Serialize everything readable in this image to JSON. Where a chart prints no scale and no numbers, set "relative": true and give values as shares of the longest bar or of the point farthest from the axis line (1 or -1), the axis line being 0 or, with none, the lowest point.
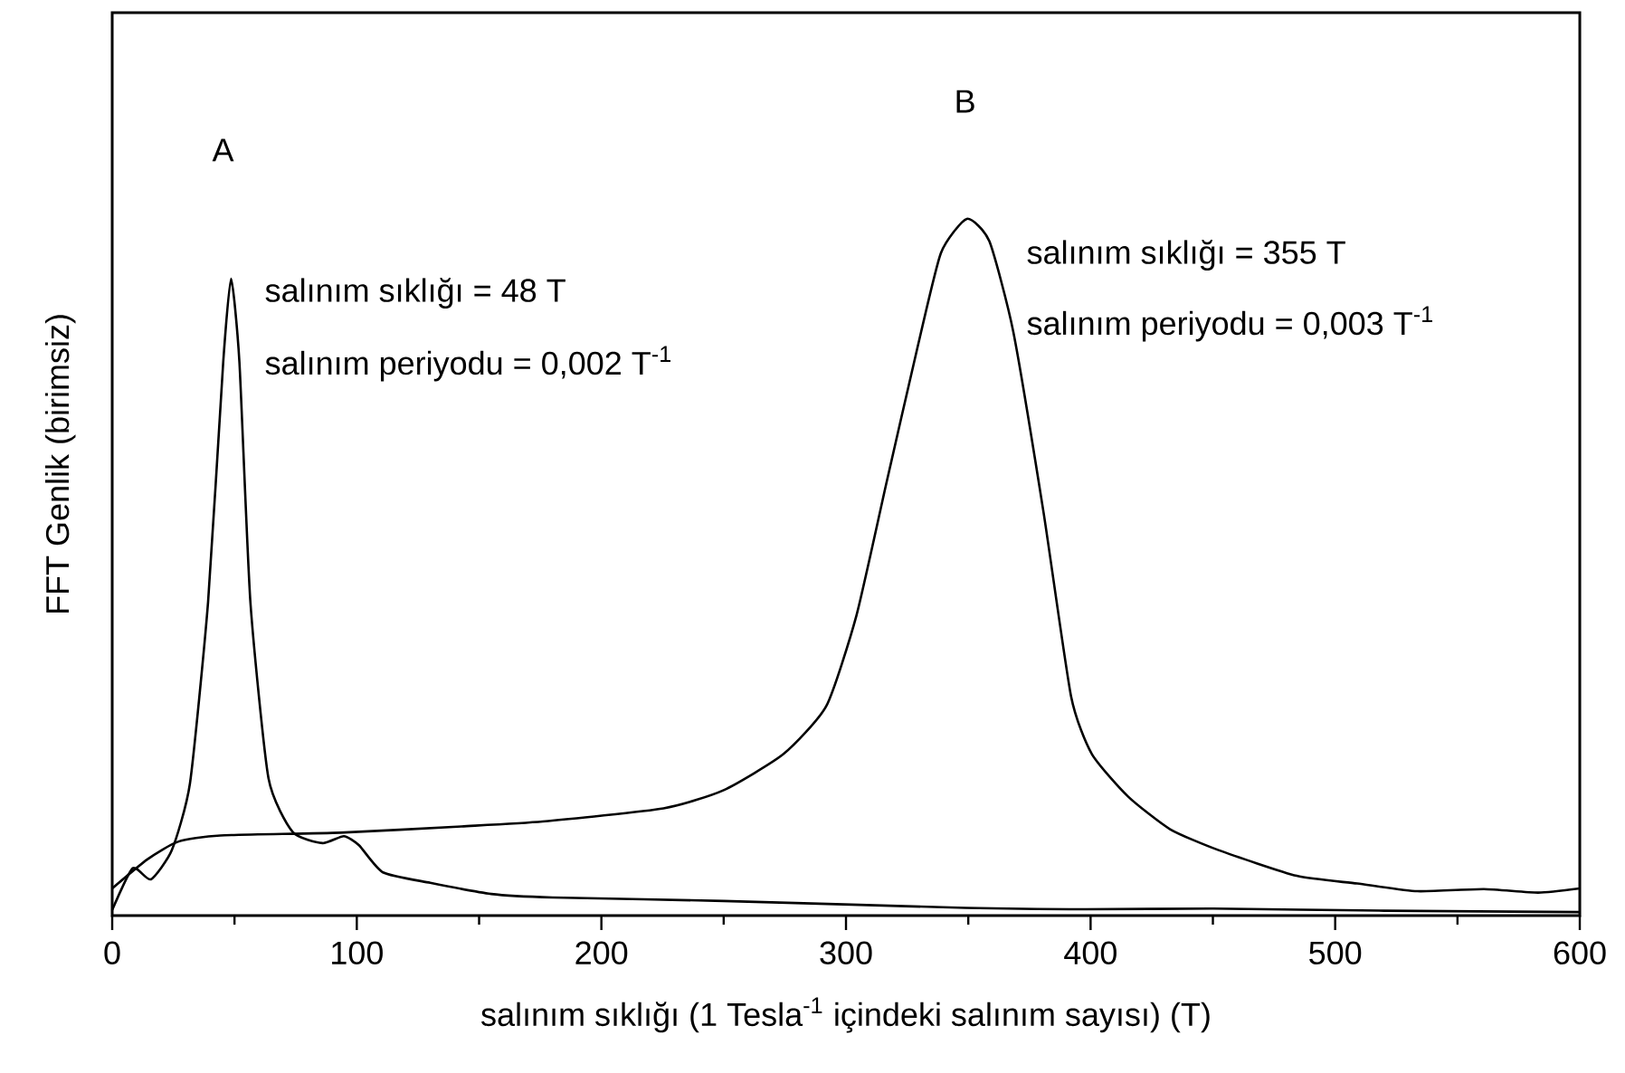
{
  "chart_data": {
    "type": "line",
    "relative": true,
    "xlabel": "salınım sıklığı (1 Tesla$^{-1}$ içindeki salınım sayısı) (T)",
    "ylabel": "FFT Genlik (birimsiz)",
    "xlim": [
      0,
      600
    ],
    "xticks": [
      0,
      100,
      200,
      300,
      400,
      500,
      600
    ],
    "tick_labels": "x",
    "marker": "none",
    "line_style": "solid",
    "series": [
      {
        "color": "#000000",
        "x": [
          0,
          8.4,
          15.8,
          24.4,
          31.8,
          39.2,
          45.4,
          48.6,
          52,
          56.5,
          63.9,
          73.8,
          86,
          94.7,
          100.9,
          110.7,
          130,
          155,
          180,
          250,
          349,
          398,
          450,
          520,
          600
        ],
        "values": [
          0.008,
          0.068,
          0.052,
          0.094,
          0.19,
          0.45,
          0.795,
          0.914,
          0.795,
          0.45,
          0.197,
          0.12,
          0.104,
          0.114,
          0.101,
          0.062,
          0.047,
          0.031,
          0.026,
          0.021,
          0.011,
          0.009,
          0.01,
          0.007,
          0.005
        ]
      },
      {
        "color": "#000000",
        "x": [
          0,
          14.5,
          26.9,
          44.2,
          93.2,
          142.8,
          176,
          225.4,
          250,
          274.5,
          292,
          304.3,
          316.6,
          329,
          338.8,
          349.4,
          358.6,
          368.4,
          380.8,
          392,
          400.5,
          415.3,
          432.5,
          452.3,
          484.3,
          509,
          533.6,
          560.8,
          583,
          600
        ],
        "values": [
          0.039,
          0.081,
          0.106,
          0.115,
          0.119,
          0.128,
          0.135,
          0.154,
          0.18,
          0.232,
          0.301,
          0.431,
          0.622,
          0.812,
          0.951,
          1,
          0.968,
          0.838,
          0.578,
          0.315,
          0.232,
          0.171,
          0.124,
          0.094,
          0.057,
          0.046,
          0.035,
          0.038,
          0.033,
          0.039
        ]
      }
    ],
    "annotations": [
      "A",
      "salınım sıklığı = 48 T",
      "salınım periyodu = 0,002 T$^{-1}$",
      "B",
      "salınım sıklığı = 355 T",
      "salınım periyodu = 0,003 T$^{-1}$"
    ]
  }
}
